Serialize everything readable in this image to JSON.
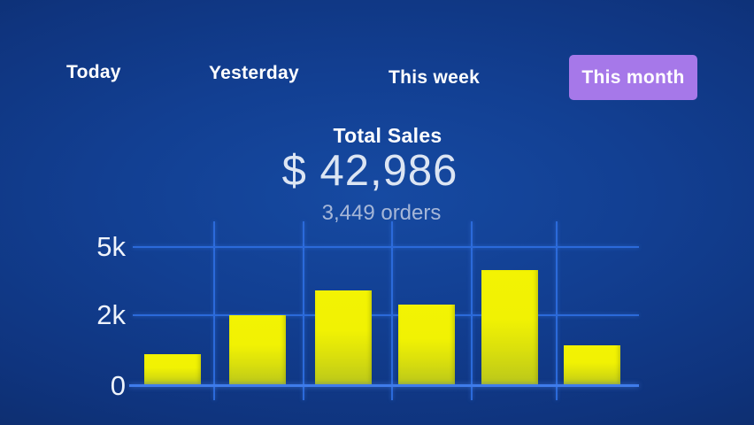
{
  "background": {
    "center_color": "#164aa2",
    "edge_color": "#0a2154"
  },
  "tabs": {
    "items": [
      {
        "label": "Today",
        "active": false
      },
      {
        "label": "Yesterday",
        "active": false
      },
      {
        "label": "This week",
        "active": false
      },
      {
        "label": "This month",
        "active": true
      }
    ],
    "active_bg": "#a678e9"
  },
  "summary": {
    "title": "Total Sales",
    "amount": "$ 42,986",
    "orders": "3,449 orders"
  },
  "chart_data": {
    "type": "bar",
    "title": "Total Sales",
    "values": [
      900,
      2000,
      3100,
      2450,
      4000,
      1150
    ],
    "y_ticks": [
      {
        "label": "0",
        "value": 0
      },
      {
        "label": "2k",
        "value": 2000
      },
      {
        "label": "5k",
        "value": 5000
      }
    ],
    "ylim": [
      0,
      5500
    ],
    "xlabel": "",
    "ylabel": "",
    "grid": true,
    "legend": false,
    "bar_color_top": "#f3f303",
    "bar_color_bottom": "#b9c61b",
    "grid_color": "#2b6ada"
  }
}
